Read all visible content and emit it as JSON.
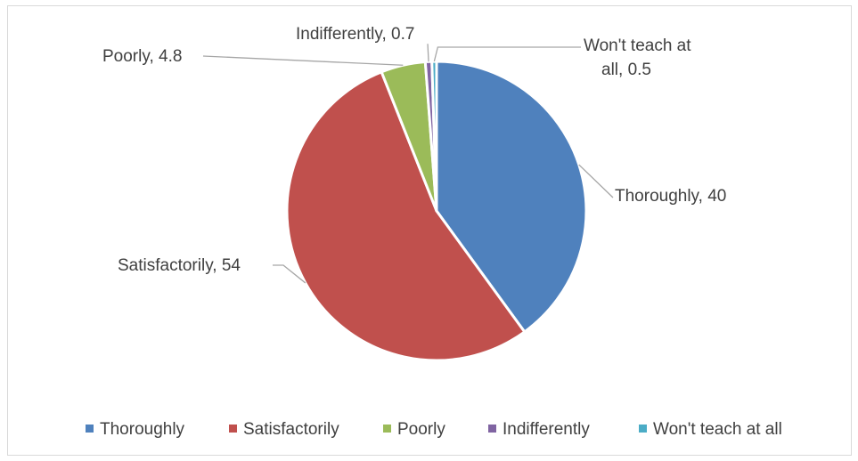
{
  "chart_data": {
    "type": "pie",
    "title": "",
    "categories": [
      "Thoroughly",
      "Satisfactorily",
      "Poorly",
      "Indifferently",
      "Won't teach at all"
    ],
    "values": [
      40,
      54,
      4.8,
      0.7,
      0.5
    ],
    "colors": [
      "#4f81bd",
      "#c0504d",
      "#9bbb59",
      "#8064a2",
      "#4bacc6"
    ],
    "data_labels": [
      [
        "Thoroughly, 40"
      ],
      [
        "Satisfactorily, 54"
      ],
      [
        "Poorly, 4.8"
      ],
      [
        "Indifferently, 0.7"
      ],
      [
        "Won't teach at",
        "all, 0.5"
      ]
    ],
    "legend": {
      "position": "bottom",
      "entries": [
        "Thoroughly",
        "Satisfactorily",
        "Poorly",
        "Indifferently",
        "Won't teach at all"
      ]
    }
  }
}
